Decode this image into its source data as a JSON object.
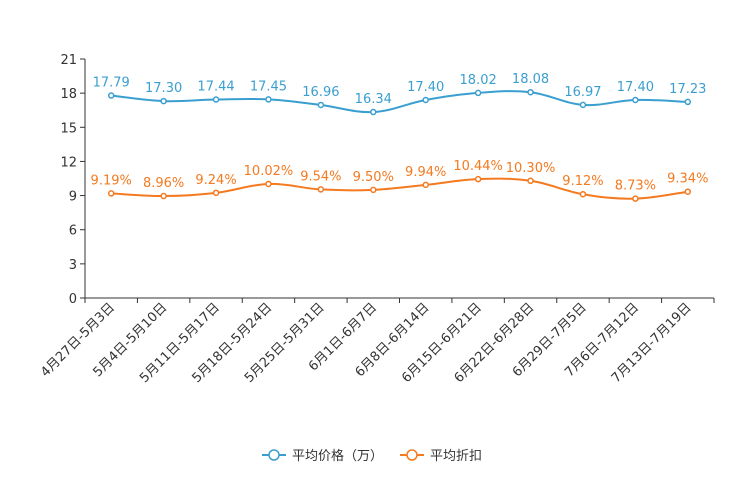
{
  "colors": {
    "price": "#3a9fd0",
    "discount": "#f47a20",
    "axis": "#333333"
  },
  "chart_data": {
    "type": "line",
    "title": "",
    "xlabel": "",
    "ylabel": "",
    "ylim": [
      0,
      21
    ],
    "yticks": [
      0,
      3,
      6,
      9,
      12,
      15,
      18,
      21
    ],
    "grid": false,
    "legend_position": "bottom-center",
    "categories": [
      "4月27日-5月3日",
      "5月4日-5月10日",
      "5月11日-5月17日",
      "5月18日-5月24日",
      "5月25日-5月31日",
      "6月1日-6月7日",
      "6月8日-6月14日",
      "6月15日-6月21日",
      "6月22日-6月28日",
      "6月29日-7月5日",
      "7月6日-7月12日",
      "7月13日-7月19日"
    ],
    "series": [
      {
        "name": "平均价格（万）",
        "values": [
          17.79,
          17.3,
          17.44,
          17.45,
          16.96,
          16.34,
          17.4,
          18.02,
          18.08,
          16.97,
          17.4,
          17.23
        ],
        "labels": [
          "17.79",
          "17.30",
          "17.44",
          "17.45",
          "16.96",
          "16.34",
          "17.40",
          "18.02",
          "18.08",
          "16.97",
          "17.40",
          "17.23"
        ]
      },
      {
        "name": "平均折扣",
        "values": [
          9.19,
          8.96,
          9.24,
          10.02,
          9.54,
          9.5,
          9.94,
          10.44,
          10.3,
          9.12,
          8.73,
          9.34
        ],
        "labels": [
          "9.19%",
          "8.96%",
          "9.24%",
          "10.02%",
          "9.54%",
          "9.50%",
          "9.94%",
          "10.44%",
          "10.30%",
          "9.12%",
          "8.73%",
          "9.34%"
        ]
      }
    ]
  }
}
